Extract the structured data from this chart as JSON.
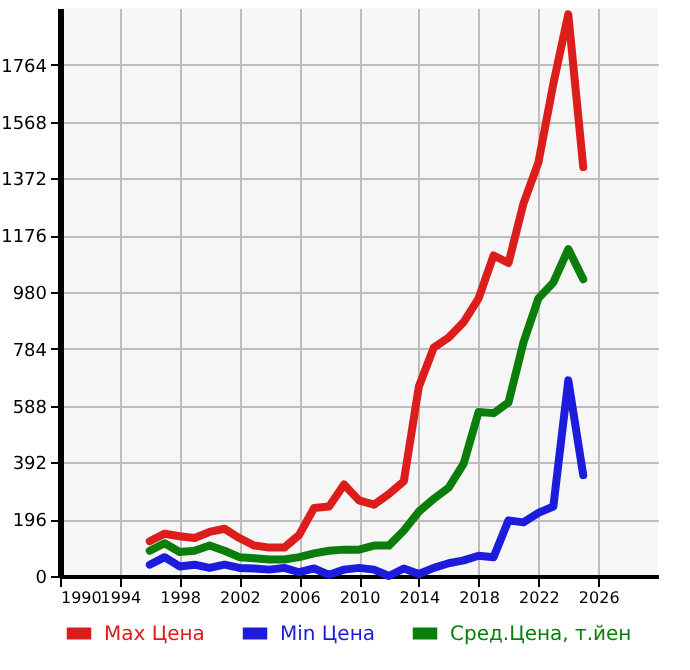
{
  "chart_data": {
    "type": "line",
    "x": [
      1996,
      1997,
      1998,
      1999,
      2000,
      2001,
      2002,
      2003,
      2004,
      2005,
      2006,
      2007,
      2008,
      2009,
      2010,
      2011,
      2012,
      2013,
      2014,
      2015,
      2016,
      2017,
      2018,
      2019,
      2020,
      2021,
      2022,
      2023,
      2024,
      2025
    ],
    "series": [
      {
        "name": "Max Цена",
        "color": "#dd1c1c",
        "values": [
          120,
          146,
          137,
          131,
          152,
          163,
          131,
          105,
          98,
          98,
          142,
          235,
          240,
          316,
          261,
          246,
          283,
          327,
          653,
          788,
          823,
          876,
          958,
          1106,
          1080,
          1285,
          1427,
          1699,
          1938,
          1411
        ]
      },
      {
        "name": "Min Цена",
        "color": "#1c1cdd",
        "values": [
          39,
          65,
          33,
          39,
          28,
          39,
          28,
          26,
          22,
          28,
          13,
          26,
          4,
          22,
          28,
          22,
          0,
          26,
          7,
          28,
          44,
          54,
          70,
          65,
          192,
          185,
          218,
          240,
          675,
          348
        ]
      },
      {
        "name": "Сред.Цена, т.йен",
        "color": "#0a7d0a",
        "values": [
          87,
          113,
          83,
          87,
          105,
          87,
          65,
          61,
          57,
          57,
          65,
          78,
          87,
          91,
          91,
          105,
          105,
          157,
          222,
          266,
          305,
          388,
          566,
          562,
          599,
          806,
          958,
          1013,
          1128,
          1024
        ]
      }
    ],
    "xlim": [
      1990,
      2030
    ],
    "xticks": [
      1990,
      1994,
      1998,
      2002,
      2006,
      2010,
      2014,
      2018,
      2022,
      2026
    ],
    "ylim": [
      0,
      1960
    ],
    "yticks": [
      0,
      196,
      392,
      588,
      784,
      980,
      1176,
      1372,
      1568,
      1764
    ],
    "grid": true,
    "legend": "bottom",
    "line_style": "solid",
    "marker": "none"
  }
}
